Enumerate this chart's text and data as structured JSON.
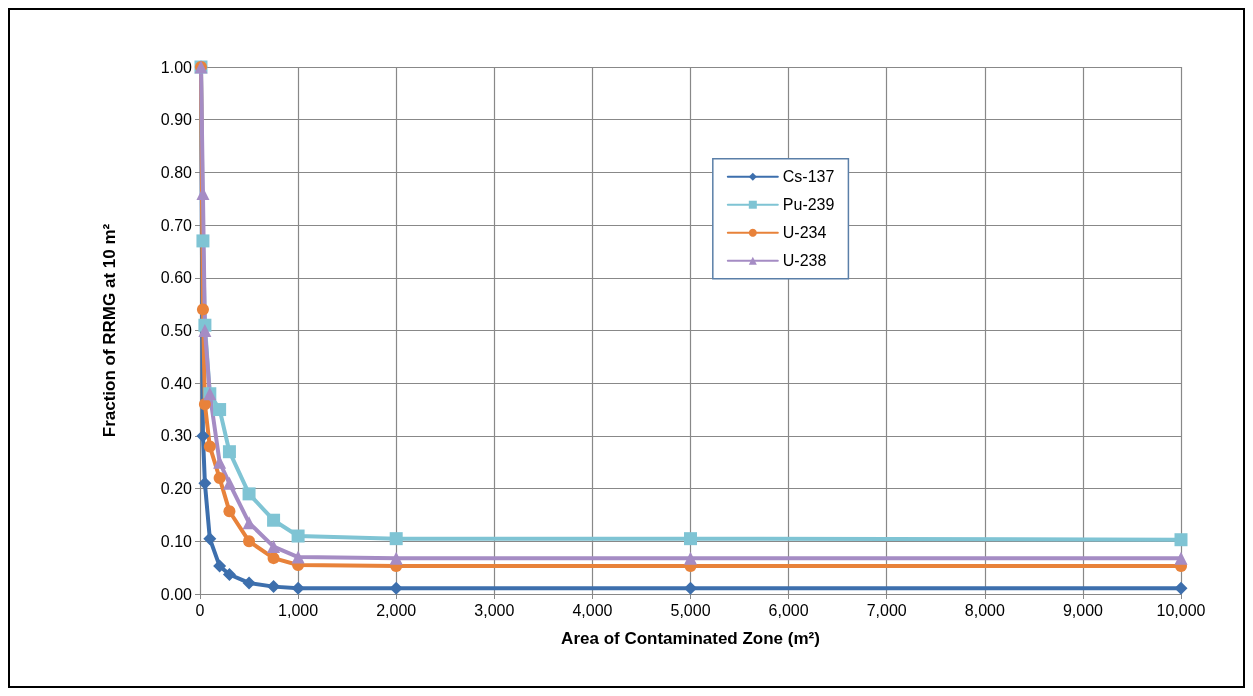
{
  "chart_data": {
    "type": "line",
    "xlabel": "Area of Contaminated Zone (m²)",
    "ylabel": "Fraction of RRMG at 10 m²",
    "x": [
      10,
      30,
      50,
      100,
      200,
      300,
      500,
      750,
      1000,
      2000,
      5000,
      10000
    ],
    "series": [
      {
        "name": "Cs-137",
        "color": "#3d6fad",
        "marker": "diamond",
        "values": [
          1.0,
          0.3,
          0.21,
          0.105,
          0.053,
          0.037,
          0.021,
          0.014,
          0.011,
          0.011,
          0.011,
          0.011
        ]
      },
      {
        "name": "Pu-239",
        "color": "#7fc4d4",
        "marker": "square",
        "values": [
          1.0,
          0.67,
          0.51,
          0.38,
          0.35,
          0.27,
          0.19,
          0.14,
          0.11,
          0.105,
          0.105,
          0.103
        ]
      },
      {
        "name": "U-234",
        "color": "#e8823a",
        "marker": "circle",
        "values": [
          1.0,
          0.54,
          0.36,
          0.28,
          0.22,
          0.157,
          0.1,
          0.068,
          0.055,
          0.053,
          0.053,
          0.053
        ]
      },
      {
        "name": "U-238",
        "color": "#a58cc4",
        "marker": "triangle",
        "values": [
          1.0,
          0.76,
          0.5,
          0.38,
          0.25,
          0.21,
          0.135,
          0.09,
          0.07,
          0.068,
          0.068,
          0.068
        ]
      }
    ],
    "xlim": [
      0,
      10000
    ],
    "xticks": [
      0,
      {
        "value": 1000,
        "label": "1,000"
      },
      {
        "value": 2000,
        "label": "2,000"
      },
      {
        "value": 3000,
        "label": "3,000"
      },
      {
        "value": 4000,
        "label": "4,000"
      },
      {
        "value": 5000,
        "label": "5,000"
      },
      {
        "value": 6000,
        "label": "6,000"
      },
      {
        "value": 7000,
        "label": "7,000"
      },
      {
        "value": 8000,
        "label": "8,000"
      },
      {
        "value": 9000,
        "label": "9,000"
      },
      {
        "value": 10000,
        "label": "10,000"
      }
    ],
    "ylim": [
      0,
      1
    ],
    "yticks": [
      {
        "value": 0,
        "label": "0.00"
      },
      {
        "value": 0.1,
        "label": "0.10"
      },
      {
        "value": 0.2,
        "label": "0.20"
      },
      {
        "value": 0.3,
        "label": "0.30"
      },
      {
        "value": 0.4,
        "label": "0.40"
      },
      {
        "value": 0.5,
        "label": "0.50"
      },
      {
        "value": 0.6,
        "label": "0.60"
      },
      {
        "value": 0.7,
        "label": "0.70"
      },
      {
        "value": 0.8,
        "label": "0.80"
      },
      {
        "value": 0.9,
        "label": "0.90"
      },
      {
        "value": 1,
        "label": "1.00"
      }
    ],
    "grid": true,
    "legend": "top",
    "line_style": "solid"
  }
}
